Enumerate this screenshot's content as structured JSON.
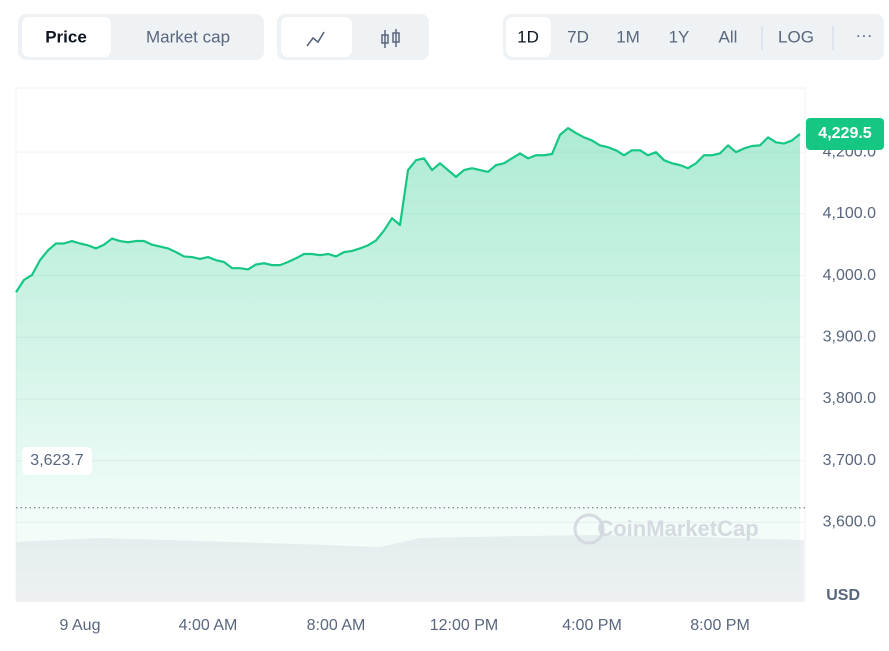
{
  "controls": {
    "tabs": [
      "Price",
      "Market cap"
    ],
    "ranges": [
      "1D",
      "7D",
      "1M",
      "1Y",
      "All"
    ],
    "scale": "LOG",
    "more": "···"
  },
  "chart_data": {
    "type": "area",
    "color": "#16c784",
    "categories": [
      null,
      null,
      null,
      null,
      null,
      null,
      null,
      null,
      "9 Aug",
      null,
      null,
      null,
      null,
      null,
      null,
      null,
      null,
      null,
      null,
      null,
      null,
      null,
      null,
      null,
      "4:00 AM",
      null,
      null,
      null,
      null,
      null,
      null,
      null,
      null,
      null,
      null,
      null,
      null,
      null,
      null,
      null,
      "8:00 AM",
      null,
      null,
      null,
      null,
      null,
      null,
      null,
      null,
      null,
      null,
      null,
      null,
      null,
      null,
      null,
      "12:00 PM",
      null,
      null,
      null,
      null,
      null,
      null,
      null,
      null,
      null,
      null,
      null,
      null,
      null,
      null,
      null,
      "4:00 PM",
      null,
      null,
      null,
      null,
      null,
      null,
      null,
      null,
      null,
      null,
      null,
      null,
      null,
      null,
      null,
      "8:00 PM",
      null,
      null,
      null,
      null,
      null,
      null,
      null,
      null,
      null,
      null
    ],
    "values": [
      3973,
      3993,
      4001,
      4025,
      4041,
      4052,
      4052,
      4056,
      4052,
      4049,
      4044,
      4050,
      4060,
      4056,
      4054,
      4056,
      4056,
      4050,
      4047,
      4044,
      4038,
      4031,
      4030,
      4027,
      4030,
      4025,
      4022,
      4012,
      4012,
      4010,
      4018,
      4020,
      4017,
      4017,
      4022,
      4028,
      4035,
      4035,
      4033,
      4035,
      4031,
      4038,
      4040,
      4044,
      4049,
      4057,
      4073,
      4093,
      4082,
      4171,
      4187,
      4190,
      4171,
      4182,
      4171,
      4160,
      4171,
      4174,
      4171,
      4168,
      4179,
      4182,
      4190,
      4198,
      4190,
      4195,
      4195,
      4197,
      4228,
      4239,
      4231,
      4224,
      4219,
      4211,
      4208,
      4203,
      4195,
      4203,
      4203,
      4195,
      4200,
      4187,
      4182,
      4179,
      4174,
      4182,
      4195,
      4195,
      4198,
      4211,
      4200,
      4206,
      4210,
      4211,
      4224,
      4216,
      4214,
      4219,
      4229.5
    ],
    "ylim": [
      3471,
      4304
    ],
    "yticks": [
      {
        "value": 3600,
        "label": "3,600.0"
      },
      {
        "value": 3700,
        "label": "3,700.0"
      },
      {
        "value": 3800,
        "label": "3,800.0"
      },
      {
        "value": 3900,
        "label": "3,900.0"
      },
      {
        "value": 4000,
        "label": "4,000.0"
      },
      {
        "value": 4100,
        "label": "4,100.0"
      },
      {
        "value": 4200,
        "label": "4,200.0"
      }
    ],
    "grid": true,
    "current_price": {
      "value": 4229.5,
      "label": "4,229.5"
    },
    "reference_line": {
      "value": 3623.7,
      "label": "3,623.7"
    },
    "y_unit": "USD",
    "watermark": "CoinMarketCap"
  }
}
